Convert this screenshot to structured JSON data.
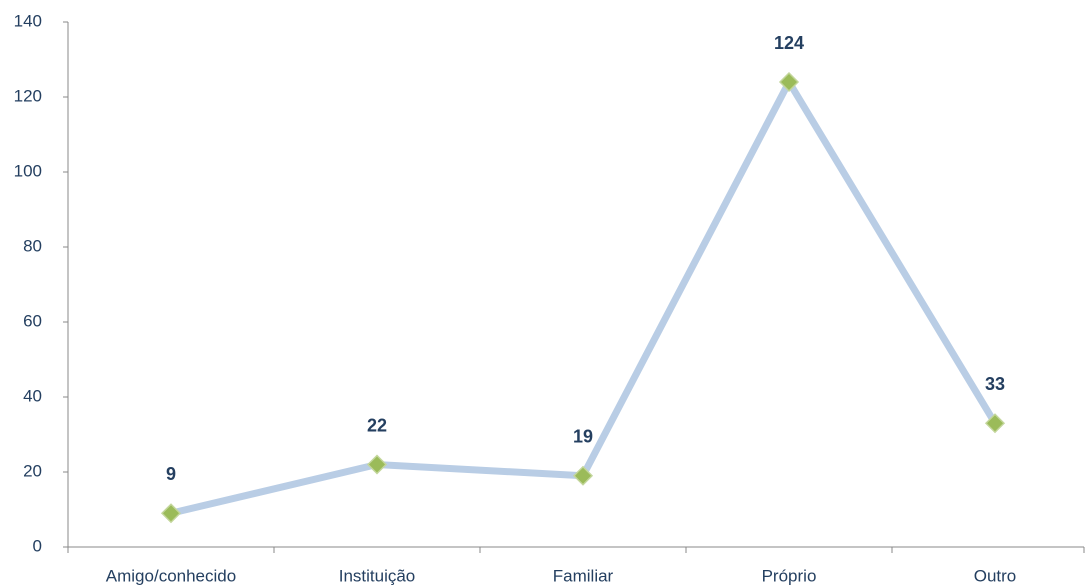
{
  "chart_data": {
    "type": "line",
    "categories": [
      "Amigo/conhecido",
      "Instituição",
      "Familiar",
      "Próprio",
      "Outro"
    ],
    "series": [
      {
        "name": null,
        "color": "#b9cde5",
        "marker_color": "#9bbb59",
        "values": [
          9,
          22,
          19,
          124,
          33
        ]
      }
    ],
    "ylim": [
      0,
      140
    ],
    "yticks": [
      0,
      20,
      40,
      60,
      80,
      100,
      120,
      140
    ],
    "grid": false,
    "data_labels": true
  }
}
